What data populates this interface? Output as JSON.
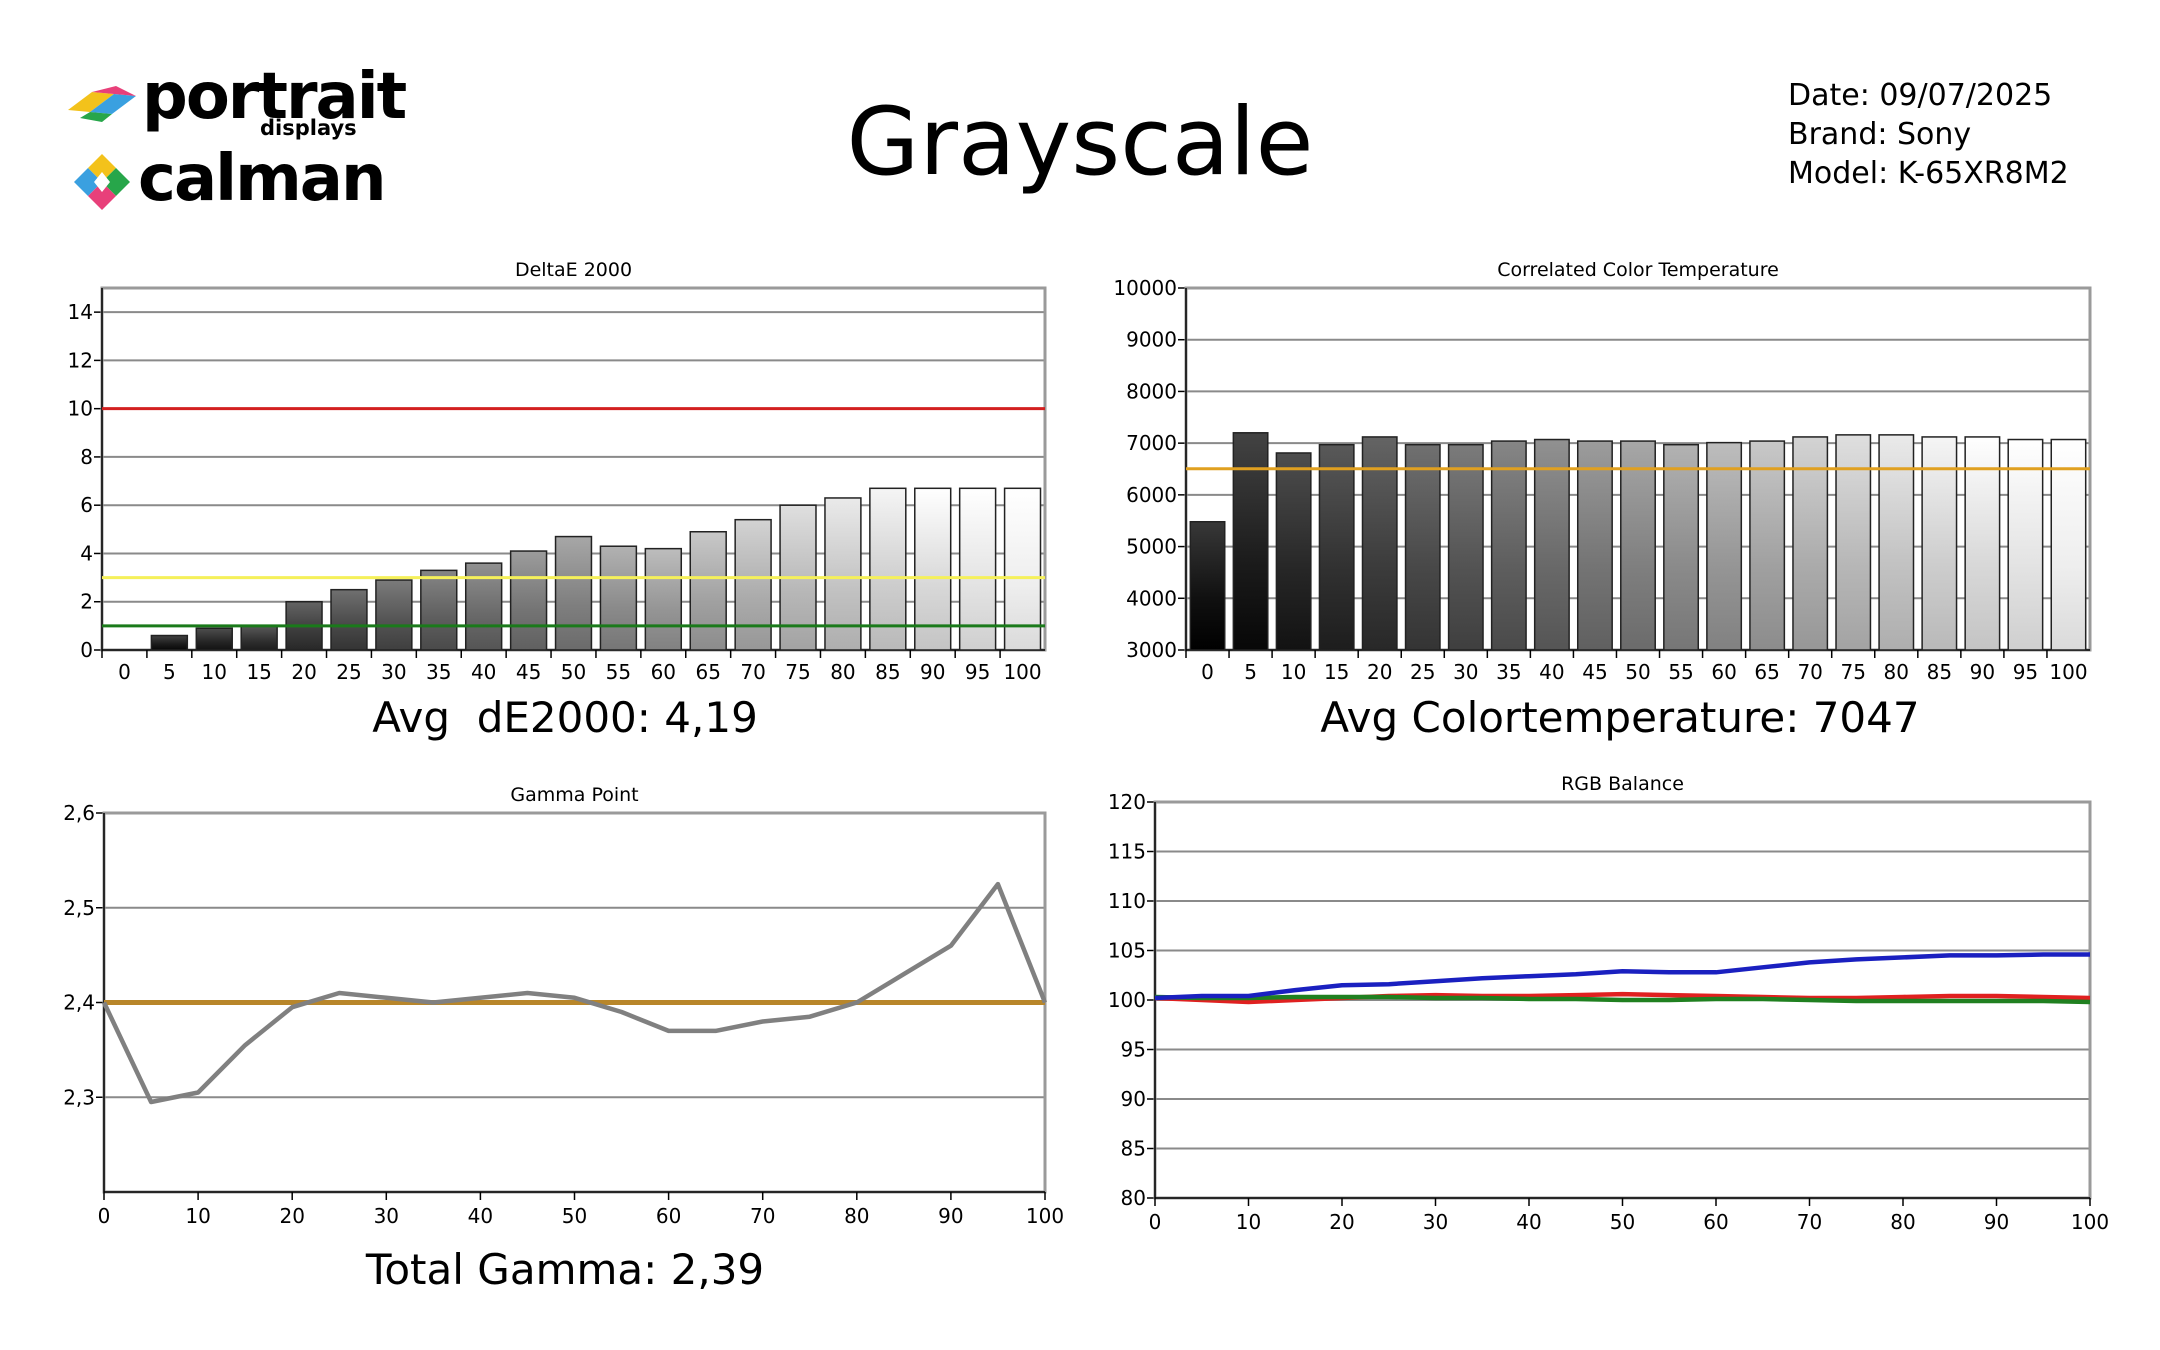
{
  "header": {
    "logo_portrait": "portrait",
    "logo_displays": "displays",
    "logo_calman": "calman",
    "title": "Grayscale",
    "date": "Date: 09/07/2025",
    "brand": "Brand: Sony",
    "model": "Model: K-65XR8M2"
  },
  "summaries": {
    "deltae": "Avg  dE2000: 4,19",
    "cct": "Avg Colortemperature: 7047",
    "gamma": "Total Gamma: 2,39"
  },
  "colors": {
    "red_line": "#d32020",
    "yellow_line": "#f5f05a",
    "green_line": "#1a7a1a",
    "orange_line": "#e0a020",
    "gamma_target": "#b8862a",
    "gamma_series": "#808080",
    "rgb_red": "#e02020",
    "rgb_green": "#208020",
    "rgb_blue": "#1a20c0"
  },
  "chart_data": [
    {
      "id": "deltae",
      "type": "bar",
      "title": "DeltaE 2000",
      "categories": [
        "0",
        "5",
        "10",
        "15",
        "20",
        "25",
        "30",
        "35",
        "40",
        "45",
        "50",
        "55",
        "60",
        "65",
        "70",
        "75",
        "80",
        "85",
        "90",
        "95",
        "100"
      ],
      "values": [
        0,
        0.6,
        0.9,
        1.0,
        2.0,
        2.5,
        2.9,
        3.3,
        3.6,
        4.1,
        4.7,
        4.3,
        4.2,
        4.9,
        5.4,
        6.0,
        6.3,
        6.7,
        6.7,
        6.7,
        6.7
      ],
      "ylim": [
        0,
        15
      ],
      "yticks": [
        0,
        2,
        4,
        6,
        8,
        10,
        12,
        14
      ],
      "reference_lines": [
        {
          "value": 10,
          "color": "#d32020"
        },
        {
          "value": 3,
          "color": "#f5f05a"
        },
        {
          "value": 1,
          "color": "#1a7a1a"
        }
      ],
      "grid": true
    },
    {
      "id": "cct",
      "type": "bar",
      "title": "Correlated Color Temperature",
      "categories": [
        "0",
        "5",
        "10",
        "15",
        "20",
        "25",
        "30",
        "35",
        "40",
        "45",
        "50",
        "55",
        "60",
        "65",
        "70",
        "75",
        "80",
        "85",
        "90",
        "95",
        "100"
      ],
      "values": [
        5480,
        7200,
        6810,
        6970,
        7120,
        6970,
        6970,
        7040,
        7070,
        7040,
        7040,
        6970,
        7010,
        7040,
        7120,
        7160,
        7160,
        7120,
        7120,
        7070,
        7070
      ],
      "ylim": [
        3000,
        10000
      ],
      "yticks": [
        3000,
        4000,
        5000,
        6000,
        7000,
        8000,
        9000,
        10000
      ],
      "reference_lines": [
        {
          "value": 6504,
          "color": "#e0a020"
        }
      ],
      "grid": true
    },
    {
      "id": "gamma",
      "type": "line",
      "title": "Gamma Point",
      "x": [
        0,
        5,
        10,
        15,
        20,
        25,
        30,
        35,
        40,
        45,
        50,
        55,
        60,
        65,
        70,
        75,
        80,
        85,
        90,
        95,
        100
      ],
      "series": [
        {
          "values": [
            2.4,
            2.295,
            2.305,
            2.355,
            2.395,
            2.41,
            2.405,
            2.4,
            2.405,
            2.41,
            2.405,
            2.39,
            2.37,
            2.37,
            2.38,
            2.385,
            2.4,
            2.43,
            2.46,
            2.525,
            2.4
          ],
          "color": "#808080"
        }
      ],
      "reference_lines": [
        {
          "value": 2.4,
          "color": "#b8862a"
        }
      ],
      "xlim": [
        0,
        100
      ],
      "ylim": [
        2.2,
        2.6
      ],
      "yticks": [
        2.3,
        2.4,
        2.5,
        2.6
      ],
      "ytick_labels": [
        "2,3",
        "2,4",
        "2,5",
        "2,6"
      ],
      "xticks": [
        0,
        10,
        20,
        30,
        40,
        50,
        60,
        70,
        80,
        90,
        100
      ],
      "grid": true
    },
    {
      "id": "rgb",
      "type": "line",
      "title": "RGB Balance",
      "x": [
        0,
        5,
        10,
        15,
        20,
        25,
        30,
        35,
        40,
        45,
        50,
        55,
        60,
        65,
        70,
        75,
        80,
        85,
        90,
        95,
        100
      ],
      "series": [
        {
          "values": [
            100.2,
            100.0,
            99.8,
            100.0,
            100.2,
            100.4,
            100.5,
            100.4,
            100.4,
            100.5,
            100.6,
            100.5,
            100.4,
            100.3,
            100.2,
            100.2,
            100.3,
            100.4,
            100.4,
            100.3,
            100.2
          ],
          "color": "#e02020"
        },
        {
          "values": [
            100.3,
            100.2,
            100.2,
            100.3,
            100.3,
            100.3,
            100.2,
            100.2,
            100.1,
            100.1,
            100.0,
            100.0,
            100.1,
            100.1,
            100.0,
            99.9,
            99.9,
            99.9,
            99.9,
            99.9,
            99.8
          ],
          "color": "#208020"
        },
        {
          "values": [
            100.2,
            100.4,
            100.4,
            101.0,
            101.5,
            101.6,
            101.9,
            102.2,
            102.4,
            102.6,
            102.9,
            102.8,
            102.8,
            103.3,
            103.8,
            104.1,
            104.3,
            104.5,
            104.5,
            104.6,
            104.6
          ],
          "color": "#1a20c0"
        }
      ],
      "xlim": [
        0,
        100
      ],
      "ylim": [
        80,
        120
      ],
      "yticks": [
        80,
        85,
        90,
        95,
        100,
        105,
        110,
        115,
        120
      ],
      "xticks": [
        0,
        10,
        20,
        30,
        40,
        50,
        60,
        70,
        80,
        90,
        100
      ],
      "grid": true
    }
  ]
}
